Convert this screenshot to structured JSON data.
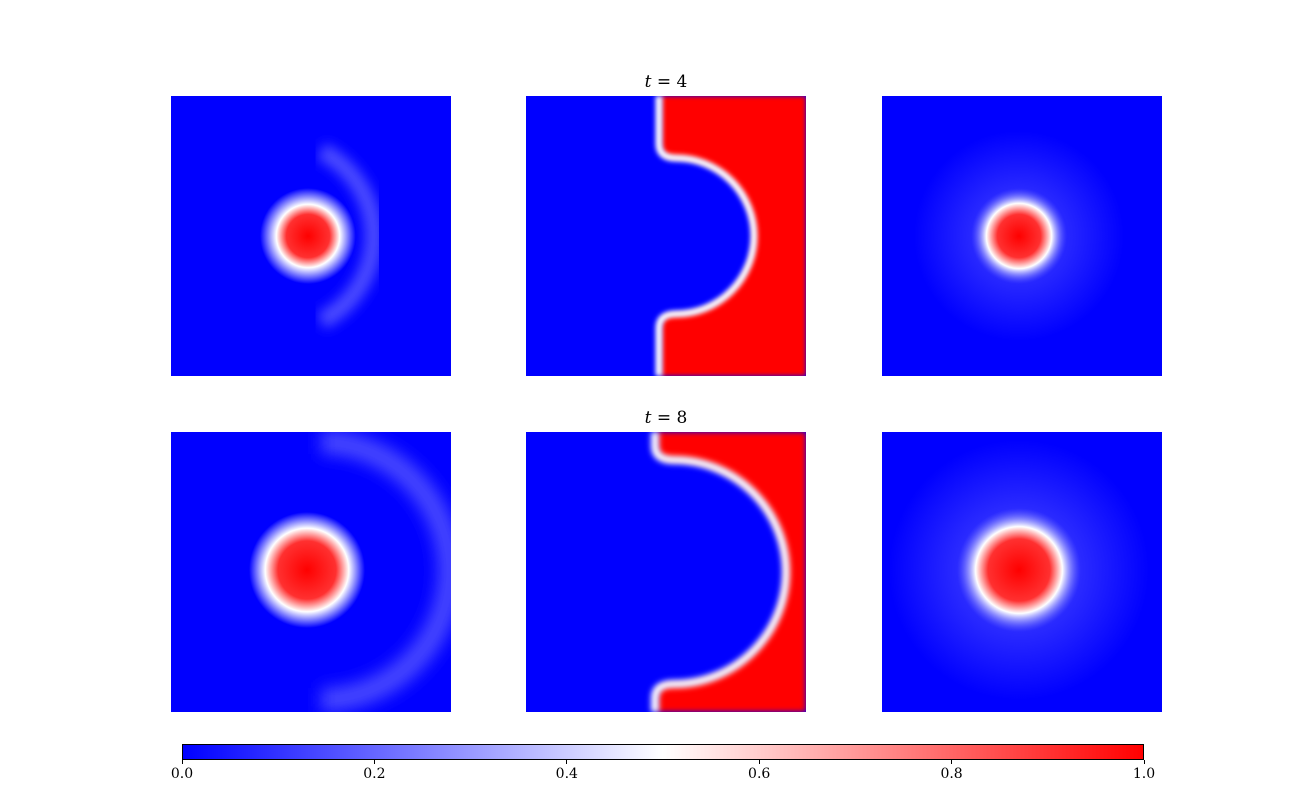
{
  "chart_data": {
    "type": "heatmap",
    "layout": "2 rows x 3 columns of field snapshots sharing one colorbar",
    "rows": [
      {
        "title_var": "t",
        "title_eq": " = ",
        "title_val": "4",
        "time": 4
      },
      {
        "title_var": "t",
        "title_eq": " = ",
        "title_val": "8",
        "time": 8
      }
    ],
    "colormap": [
      "#0000ff",
      "#ffffff",
      "#ff0000"
    ],
    "colorbar": {
      "range": [
        0.0,
        1.0
      ],
      "ticks": [
        "0.0",
        "0.2",
        "0.4",
        "0.6",
        "0.8",
        "1.0"
      ],
      "placement": "bottom"
    },
    "axes": "off"
  }
}
